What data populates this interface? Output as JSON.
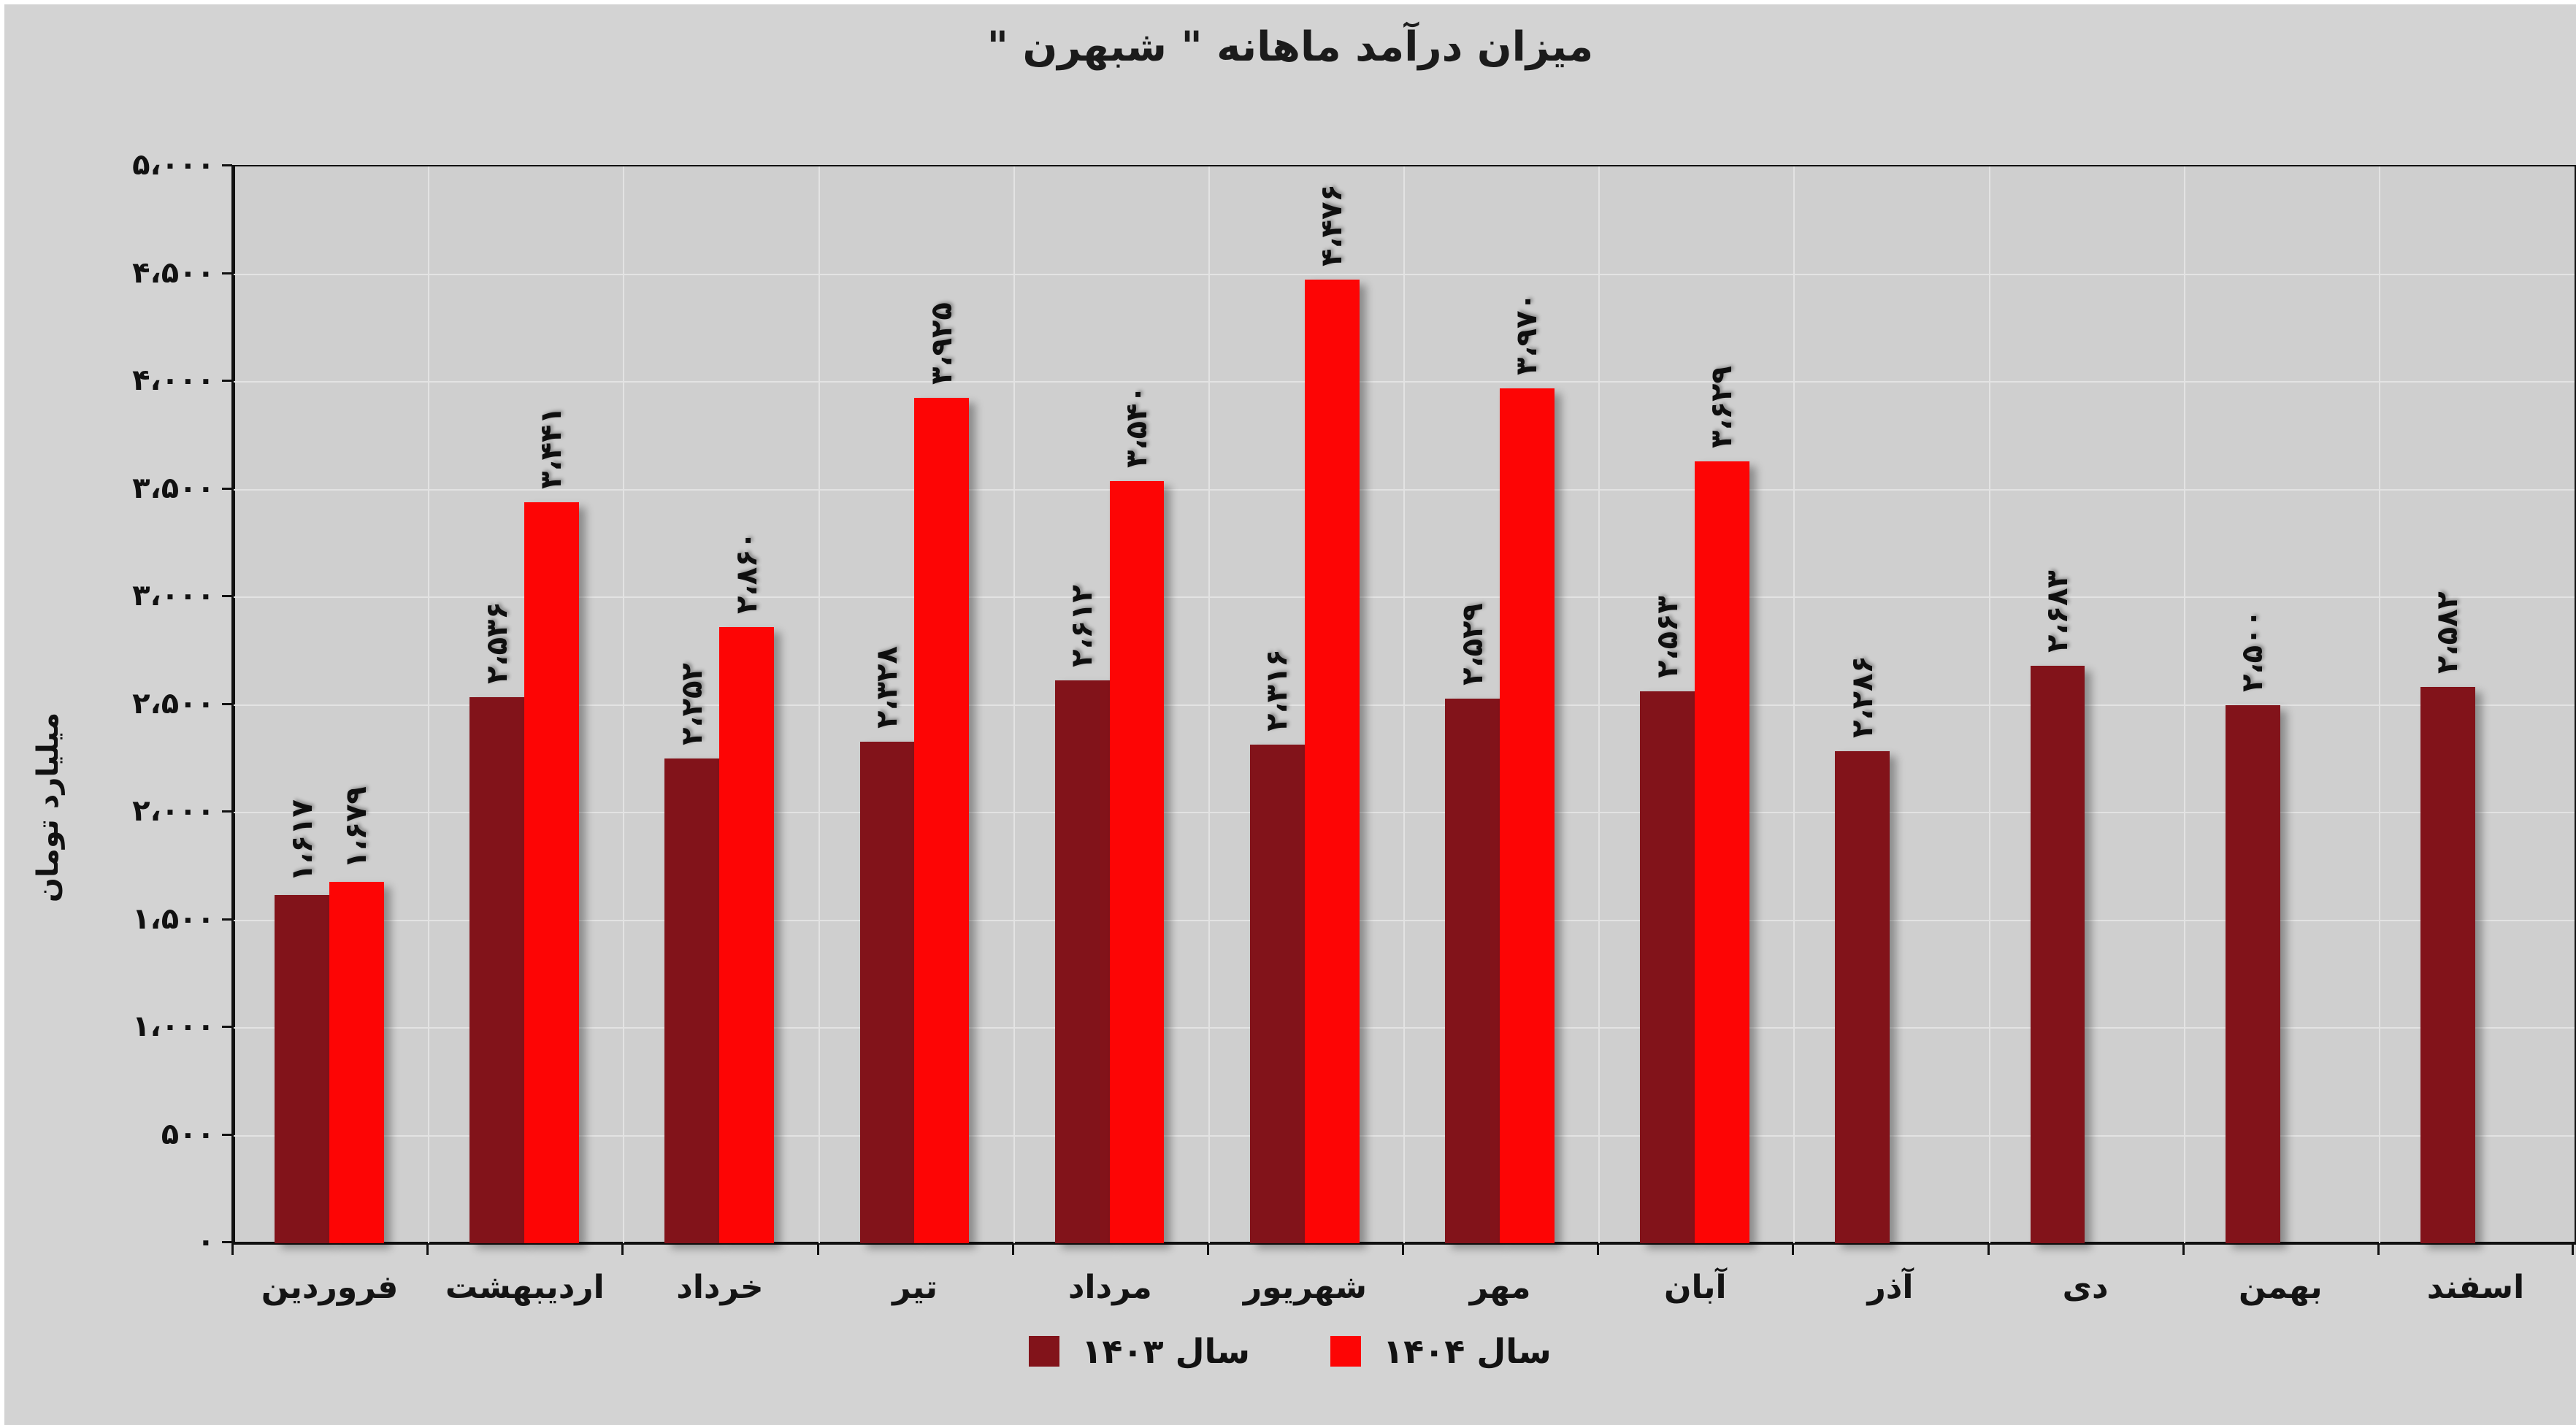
{
  "title": "میزان درآمد ماهانه \" شبهرن \"",
  "y_axis": {
    "title": "میلیارد تومان",
    "tick_labels": [
      "۵،۰۰۰",
      "۴،۵۰۰",
      "۴،۰۰۰",
      "۳،۵۰۰",
      "۳،۰۰۰",
      "۲،۵۰۰",
      "۲،۰۰۰",
      "۱،۵۰۰",
      "۱،۰۰۰",
      "۵۰۰",
      "۰"
    ],
    "tick_values": [
      5000,
      4500,
      4000,
      3500,
      3000,
      2500,
      2000,
      1500,
      1000,
      500,
      0
    ]
  },
  "legend": {
    "items": [
      {
        "label": "سال ۱۴۰۳",
        "color": "#82131a"
      },
      {
        "label": "سال ۱۴۰۴",
        "color": "#fd0505"
      }
    ]
  },
  "colors": {
    "background": "#d3d3d3",
    "plot_background": "#cfcfcf",
    "gridline": "#e3e3e3",
    "axis": "#111111",
    "series_1403": "#82131a",
    "series_1404": "#fd0505"
  },
  "chart_data": {
    "type": "bar",
    "title": "میزان درآمد ماهانه \" شبهرن \"",
    "ylabel": "میلیارد تومان",
    "ylim": [
      0,
      5000
    ],
    "grid": true,
    "legend_position": "bottom",
    "categories": [
      "فروردین",
      "اردیبهشت",
      "خرداد",
      "تیر",
      "مرداد",
      "شهریور",
      "مهر",
      "آبان",
      "آذر",
      "دی",
      "بهمن",
      "اسفند"
    ],
    "series": [
      {
        "name": "سال ۱۴۰۳",
        "color": "#82131a",
        "values": [
          1617,
          2536,
          2252,
          2328,
          2612,
          2316,
          2529,
          2563,
          2286,
          2683,
          2500,
          2582
        ],
        "value_labels": [
          "۱،۶۱۷",
          "۲،۵۳۶",
          "۲،۲۵۲",
          "۲،۳۲۸",
          "۲،۶۱۲",
          "۲،۳۱۶",
          "۲،۵۲۹",
          "۲،۵۶۳",
          "۲،۲۸۶",
          "۲،۶۸۳",
          "۲،۵۰۰",
          "۲،۵۸۲"
        ]
      },
      {
        "name": "سال ۱۴۰۴",
        "color": "#fd0505",
        "values": [
          1679,
          3441,
          2860,
          3925,
          3540,
          4476,
          3970,
          3629,
          null,
          null,
          null,
          null
        ],
        "value_labels": [
          "۱،۶۷۹",
          "۳،۴۴۱",
          "۲،۸۶۰",
          "۳،۹۲۵",
          "۳،۵۴۰",
          "۴،۴۷۶",
          "۳،۹۷۰",
          "۳،۶۲۹",
          null,
          null,
          null,
          null
        ]
      }
    ]
  }
}
